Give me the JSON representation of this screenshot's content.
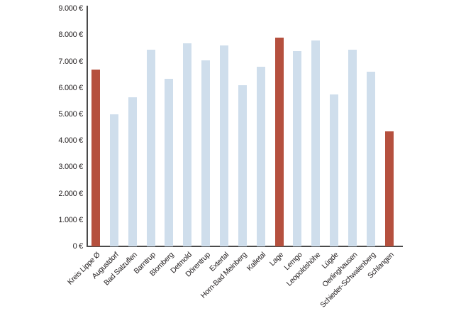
{
  "chart_data": {
    "type": "bar",
    "title": "",
    "xlabel": "",
    "ylabel": "",
    "unit": "€",
    "categories": [
      "Kreis Lippe Ø",
      "Augustdorf",
      "Bad Salzuflen",
      "Barntrup",
      "Blomberg",
      "Detmold",
      "Dörentrup",
      "Extertal",
      "Horn-Bad Meinberg",
      "Kalletal",
      "Lage",
      "Lemgo",
      "Leopoldshöhe",
      "Lügde",
      "Oerlinghausen",
      "Schieder-Schwalenberg",
      "Schlangen"
    ],
    "values": [
      6700,
      5000,
      5650,
      7450,
      6350,
      7700,
      7050,
      7600,
      6100,
      6800,
      7900,
      7400,
      7800,
      5750,
      7450,
      6600,
      4350
    ],
    "highlighted_categories": [
      "Kreis Lippe Ø",
      "Lage",
      "Schlangen"
    ],
    "highlight_indices": [
      0,
      10,
      16
    ],
    "ylim": [
      0,
      9000
    ],
    "y_tick_values": [
      0,
      1000,
      2000,
      3000,
      4000,
      5000,
      6000,
      7000,
      8000,
      9000
    ],
    "y_tick_labels": [
      "0 €",
      "1.000 €",
      "2.000 €",
      "3.000 €",
      "4.000 €",
      "5.000 €",
      "6.000 €",
      "7.000 €",
      "8.000 €",
      "9.000 €"
    ],
    "grid": false,
    "legend": false,
    "colors": {
      "bar_default": "#cfdeec",
      "bar_highlight": "#b5503e",
      "axis": "#4a4a4a",
      "text": "#231f20"
    }
  }
}
